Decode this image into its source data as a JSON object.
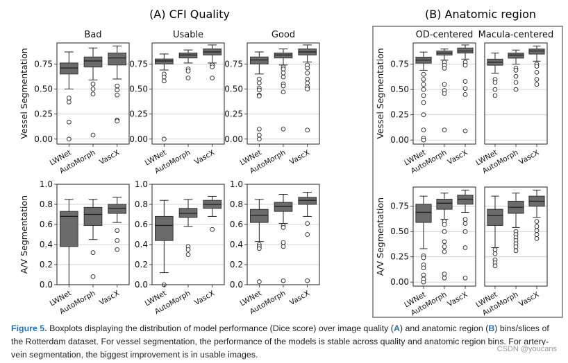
{
  "headings": {
    "a": "(A) CFI Quality",
    "b": "(B) Anatomic region"
  },
  "caption": {
    "label": "Figure 5.",
    "text_before_a": " Boxplots displaying the distribution of model performance (Dice score) over image quality (",
    "a": "A",
    "text_mid": ") and anatomic region (",
    "b": "B",
    "text_after_b": ") bins/slices of the Rotterdam dataset. For vessel segmentation, the performance of the models is stable across quality and anatomic region bins. For artery-vein segmentation, the biggest improvement is in usable images."
  },
  "watermark": "CSDN @youcans",
  "colors": {
    "box": "#6b6b6b",
    "grid": "#c8c8c8"
  },
  "chart_data": [
    {
      "type": "boxplot",
      "id": "vessel-bad",
      "title": "Bad",
      "ylabel": "Vessel Segmentation",
      "ylim": [
        -0.05,
        0.96
      ],
      "yticks": [
        0.0,
        0.25,
        0.5,
        0.75
      ],
      "ytick_labels": [
        "0.00",
        "0.25",
        "0.50",
        "0.75"
      ],
      "categories": [
        "LWNet",
        "AutoMorph",
        "VascX"
      ],
      "boxes": [
        {
          "min": 0.5,
          "q1": 0.65,
          "median": 0.71,
          "q3": 0.76,
          "max": 0.87,
          "outliers": [
            0.41,
            0.37,
            0.17,
            0.0
          ]
        },
        {
          "min": 0.59,
          "q1": 0.72,
          "median": 0.78,
          "q3": 0.82,
          "max": 0.91,
          "outliers": [
            0.55,
            0.5,
            0.45,
            0.04
          ]
        },
        {
          "min": 0.6,
          "q1": 0.74,
          "median": 0.81,
          "q3": 0.86,
          "max": 0.93,
          "outliers": [
            0.53,
            0.49,
            0.44,
            0.19,
            0.18
          ]
        }
      ]
    },
    {
      "type": "boxplot",
      "id": "vessel-usable",
      "title": "Usable",
      "ylabel": "",
      "ylim": [
        -0.05,
        0.96
      ],
      "yticks": [
        0.0,
        0.25,
        0.5,
        0.75
      ],
      "ytick_labels": [
        "0.00",
        "0.25",
        "0.50",
        "0.75"
      ],
      "categories": [
        "LWNet",
        "AutoMorph",
        "VascX"
      ],
      "boxes": [
        {
          "min": 0.69,
          "q1": 0.75,
          "median": 0.78,
          "q3": 0.8,
          "max": 0.85,
          "outliers": [
            0.65,
            0.62,
            0.58,
            0.0
          ]
        },
        {
          "min": 0.76,
          "q1": 0.81,
          "median": 0.84,
          "q3": 0.86,
          "max": 0.89,
          "outliers": [
            0.7,
            0.68,
            0.61
          ]
        },
        {
          "min": 0.76,
          "q1": 0.84,
          "median": 0.87,
          "q3": 0.9,
          "max": 0.94,
          "outliers": [
            0.74,
            0.72,
            0.61
          ]
        }
      ]
    },
    {
      "type": "boxplot",
      "id": "vessel-good",
      "title": "Good",
      "ylabel": "",
      "ylim": [
        -0.05,
        0.96
      ],
      "yticks": [
        0.0,
        0.25,
        0.5,
        0.75
      ],
      "ytick_labels": [
        "0.00",
        "0.25",
        "0.50",
        "0.75"
      ],
      "categories": [
        "LWNet",
        "AutoMorph",
        "VascX"
      ],
      "boxes": [
        {
          "min": 0.65,
          "q1": 0.75,
          "median": 0.79,
          "q3": 0.82,
          "max": 0.87,
          "outliers": [
            0.6,
            0.56,
            0.51,
            0.49,
            0.44,
            0.43,
            0.1,
            0.04,
            0.0
          ]
        },
        {
          "min": 0.74,
          "q1": 0.81,
          "median": 0.84,
          "q3": 0.86,
          "max": 0.9,
          "outliers": [
            0.72,
            0.7,
            0.66,
            0.62,
            0.55,
            0.53,
            0.47,
            0.1
          ]
        },
        {
          "min": 0.77,
          "q1": 0.84,
          "median": 0.87,
          "q3": 0.9,
          "max": 0.94,
          "outliers": [
            0.74,
            0.71,
            0.66,
            0.6,
            0.56,
            0.52,
            0.5,
            0.09
          ]
        }
      ]
    },
    {
      "type": "boxplot",
      "id": "vessel-od",
      "title": "OD-centered",
      "ylabel": "Vessel Segmentation",
      "ylim": [
        -0.04,
        0.96
      ],
      "yticks": [
        0.0,
        0.25,
        0.5,
        0.75
      ],
      "ytick_labels": [
        "0.00",
        "0.25",
        "0.50",
        "0.75"
      ],
      "categories": [
        "LWNet",
        "AutoMorph",
        "VascX"
      ],
      "boxes": [
        {
          "min": 0.69,
          "q1": 0.76,
          "median": 0.79,
          "q3": 0.82,
          "max": 0.87,
          "outliers": [
            0.65,
            0.6,
            0.55,
            0.5,
            0.44,
            0.37,
            0.25,
            0.1,
            0.02,
            0.0
          ]
        },
        {
          "min": 0.79,
          "q1": 0.84,
          "median": 0.86,
          "q3": 0.88,
          "max": 0.9,
          "outliers": [
            0.77,
            0.74,
            0.71,
            0.55,
            0.49,
            0.46,
            0.1
          ]
        },
        {
          "min": 0.8,
          "q1": 0.86,
          "median": 0.88,
          "q3": 0.91,
          "max": 0.94,
          "outliers": [
            0.77,
            0.74,
            0.58,
            0.51,
            0.45,
            0.09
          ]
        }
      ]
    },
    {
      "type": "boxplot",
      "id": "vessel-macula",
      "title": "Macula-centered",
      "ylabel": "",
      "ylim": [
        -0.04,
        0.96
      ],
      "yticks": [
        0.0,
        0.25,
        0.5,
        0.75
      ],
      "ytick_labels": [
        "",
        "",
        "",
        ""
      ],
      "categories": [
        "LWNet",
        "AutoMorph",
        "VascX"
      ],
      "boxes": [
        {
          "min": 0.66,
          "q1": 0.74,
          "median": 0.77,
          "q3": 0.8,
          "max": 0.86,
          "outliers": [
            0.6,
            0.57,
            0.5,
            0.44
          ]
        },
        {
          "min": 0.75,
          "q1": 0.81,
          "median": 0.84,
          "q3": 0.86,
          "max": 0.89,
          "outliers": [
            0.71,
            0.69,
            0.63,
            0.57,
            0.5
          ]
        },
        {
          "min": 0.78,
          "q1": 0.85,
          "median": 0.88,
          "q3": 0.9,
          "max": 0.93,
          "outliers": [
            0.75,
            0.73,
            0.67,
            0.6,
            0.55
          ]
        }
      ]
    },
    {
      "type": "boxplot",
      "id": "av-bad",
      "title": "",
      "ylabel": "A/V Segmentation",
      "ylim": [
        0.0,
        1.0
      ],
      "yticks": [
        0.0,
        0.2,
        0.4,
        0.6,
        0.8,
        1.0
      ],
      "ytick_labels": [
        "0.0",
        "0.2",
        "0.4",
        "0.6",
        "0.8",
        "1.0"
      ],
      "categories": [
        "LWNet",
        "AutoMorph",
        "VascX"
      ],
      "boxes": [
        {
          "min": 0.0,
          "q1": 0.38,
          "median": 0.68,
          "q3": 0.73,
          "max": 0.85,
          "outliers": []
        },
        {
          "min": 0.45,
          "q1": 0.59,
          "median": 0.7,
          "q3": 0.77,
          "max": 0.85,
          "outliers": [
            0.32,
            0.08
          ]
        },
        {
          "min": 0.62,
          "q1": 0.71,
          "median": 0.76,
          "q3": 0.8,
          "max": 0.87,
          "outliers": [
            0.54,
            0.44,
            0.35
          ]
        }
      ]
    },
    {
      "type": "boxplot",
      "id": "av-usable",
      "title": "",
      "ylabel": "",
      "ylim": [
        0.0,
        1.0
      ],
      "yticks": [
        0.0,
        0.2,
        0.4,
        0.6,
        0.8,
        1.0
      ],
      "ytick_labels": [
        "0.0",
        "0.2",
        "0.4",
        "0.6",
        "0.8",
        "1.0"
      ],
      "categories": [
        "LWNet",
        "AutoMorph",
        "VascX"
      ],
      "boxes": [
        {
          "min": 0.12,
          "q1": 0.44,
          "median": 0.59,
          "q3": 0.68,
          "max": 0.84,
          "outliers": [
            0.0
          ]
        },
        {
          "min": 0.58,
          "q1": 0.67,
          "median": 0.71,
          "q3": 0.76,
          "max": 0.85,
          "outliers": [
            0.38,
            0.35,
            0.3
          ]
        },
        {
          "min": 0.68,
          "q1": 0.76,
          "median": 0.8,
          "q3": 0.84,
          "max": 0.88,
          "outliers": [
            0.55
          ]
        }
      ]
    },
    {
      "type": "boxplot",
      "id": "av-good",
      "title": "",
      "ylabel": "",
      "ylim": [
        0.0,
        1.0
      ],
      "yticks": [
        0.0,
        0.2,
        0.4,
        0.6,
        0.8,
        1.0
      ],
      "ytick_labels": [
        "0.0",
        "0.2",
        "0.4",
        "0.6",
        "0.8",
        "1.0"
      ],
      "categories": [
        "LWNet",
        "AutoMorph",
        "VascX"
      ],
      "boxes": [
        {
          "min": 0.43,
          "q1": 0.62,
          "median": 0.69,
          "q3": 0.75,
          "max": 0.85,
          "outliers": [
            0.4,
            0.38,
            0.36,
            0.03
          ]
        },
        {
          "min": 0.61,
          "q1": 0.73,
          "median": 0.78,
          "q3": 0.82,
          "max": 0.9,
          "outliers": [
            0.59,
            0.57,
            0.42,
            0.38,
            0.04
          ]
        },
        {
          "min": 0.68,
          "q1": 0.8,
          "median": 0.84,
          "q3": 0.87,
          "max": 0.92,
          "outliers": [
            0.61,
            0.5,
            0.04
          ]
        }
      ]
    },
    {
      "type": "boxplot",
      "id": "av-od",
      "title": "",
      "ylabel": "A/V Segmentation",
      "ylim": [
        -0.04,
        0.94
      ],
      "yticks": [
        0.0,
        0.25,
        0.5,
        0.75
      ],
      "ytick_labels": [
        "0.00",
        "0.25",
        "0.50",
        "0.75"
      ],
      "categories": [
        "LWNet",
        "AutoMorph",
        "VascX"
      ],
      "boxes": [
        {
          "min": 0.33,
          "q1": 0.59,
          "median": 0.69,
          "q3": 0.77,
          "max": 0.85,
          "outliers": [
            0.26,
            0.24,
            0.17,
            0.14,
            0.07,
            0.03,
            0.0
          ]
        },
        {
          "min": 0.62,
          "q1": 0.72,
          "median": 0.78,
          "q3": 0.82,
          "max": 0.88,
          "outliers": [
            0.6,
            0.57,
            0.5,
            0.4,
            0.35,
            0.3,
            0.08,
            0.04
          ]
        },
        {
          "min": 0.69,
          "q1": 0.77,
          "median": 0.82,
          "q3": 0.86,
          "max": 0.91,
          "outliers": [
            0.62,
            0.58,
            0.5,
            0.34,
            0.04
          ]
        }
      ]
    },
    {
      "type": "boxplot",
      "id": "av-macula",
      "title": "",
      "ylabel": "",
      "ylim": [
        -0.04,
        0.94
      ],
      "yticks": [
        0.0,
        0.25,
        0.5,
        0.75
      ],
      "ytick_labels": [
        "",
        "",
        "",
        ""
      ],
      "categories": [
        "LWNet",
        "AutoMorph",
        "VascX"
      ],
      "boxes": [
        {
          "min": 0.34,
          "q1": 0.56,
          "median": 0.66,
          "q3": 0.72,
          "max": 0.85,
          "outliers": [
            0.32,
            0.28,
            0.22,
            0.19,
            0.16
          ]
        },
        {
          "min": 0.54,
          "q1": 0.68,
          "median": 0.74,
          "q3": 0.8,
          "max": 0.88,
          "outliers": [
            0.5,
            0.47,
            0.44,
            0.41,
            0.38,
            0.35,
            0.31
          ]
        },
        {
          "min": 0.64,
          "q1": 0.75,
          "median": 0.8,
          "q3": 0.85,
          "max": 0.91,
          "outliers": [
            0.6,
            0.55,
            0.51,
            0.47,
            0.43
          ]
        }
      ]
    }
  ]
}
